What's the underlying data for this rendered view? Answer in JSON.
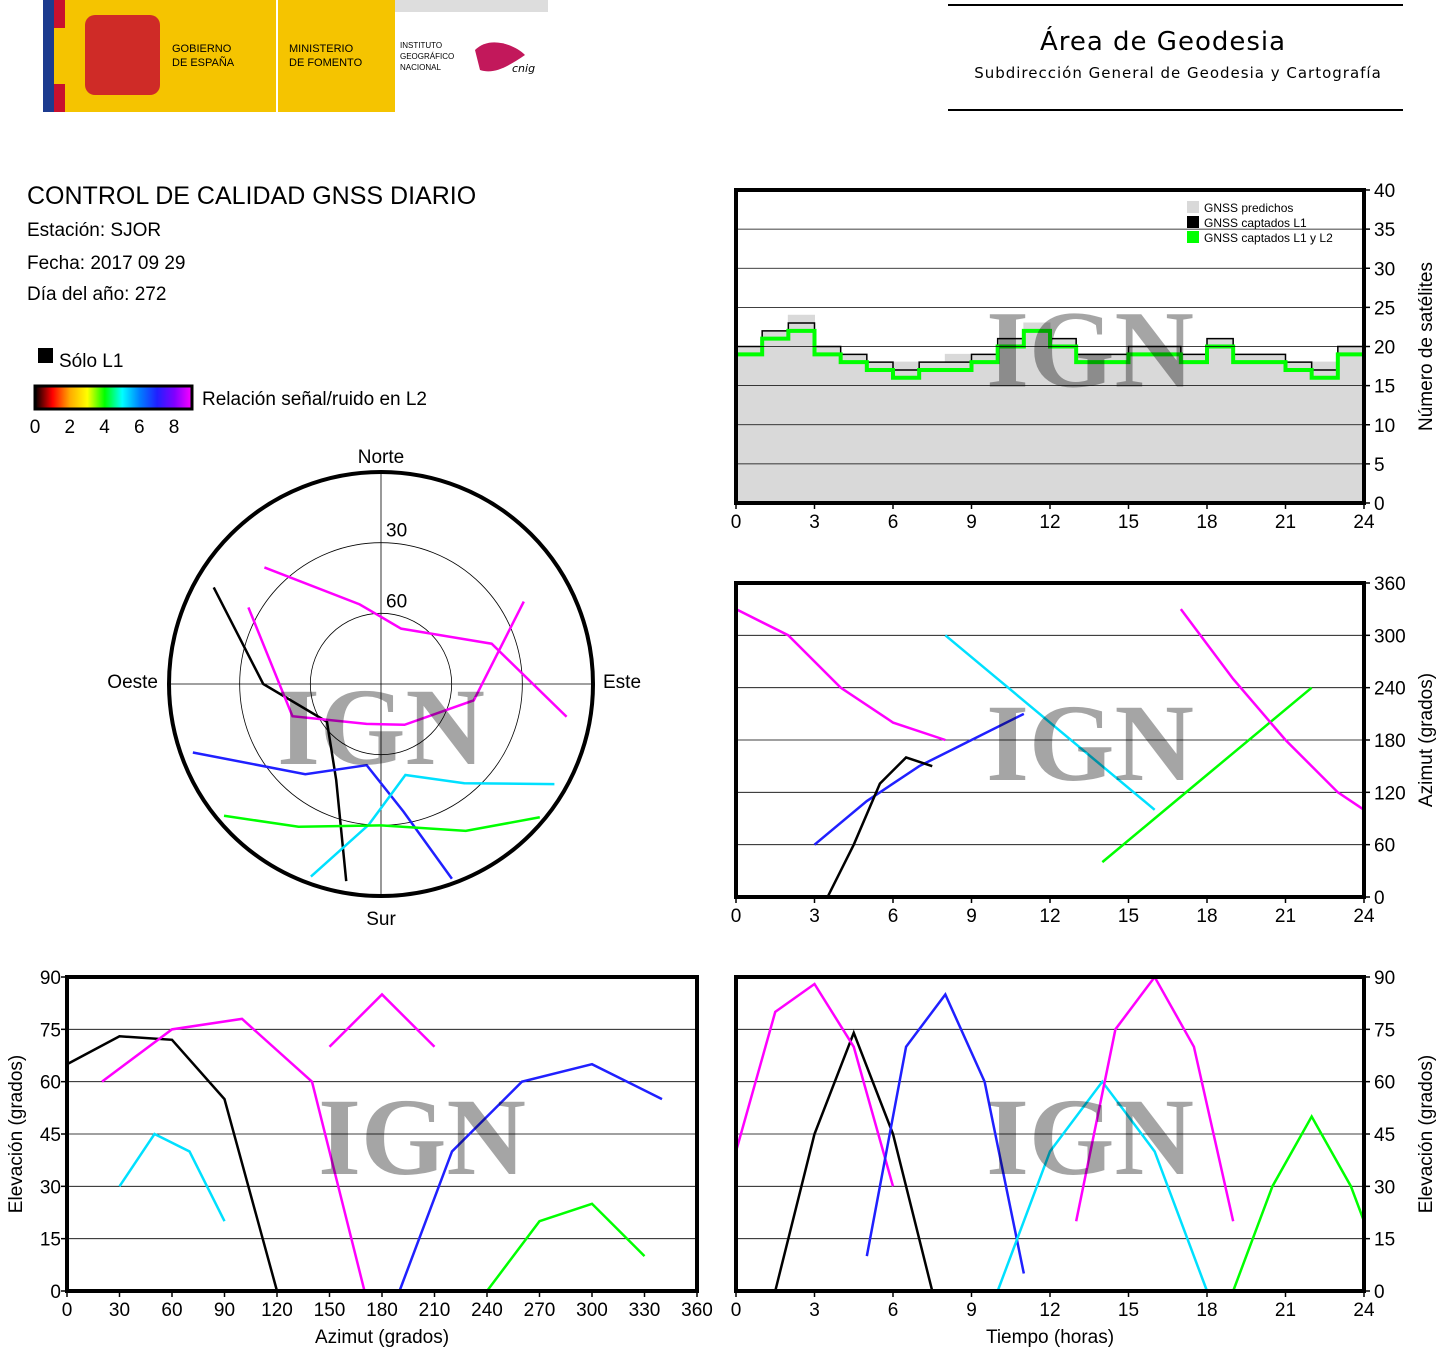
{
  "header": {
    "government": [
      "GOBIERNO",
      "DE ESPAÑA"
    ],
    "ministry": [
      "MINISTERIO",
      "DE FOMENTO"
    ],
    "institute": [
      "INSTITUTO",
      "GEOGRÁFICO",
      "NACIONAL"
    ],
    "cnig": "cnig",
    "area": "Área de Geodesia",
    "subdirection": "Subdirección General de Geodesia y Cartografía"
  },
  "report": {
    "title": "CONTROL DE CALIDAD GNSS DIARIO",
    "station": "Estación: SJOR",
    "date": "Fecha: 2017 09 29",
    "day_of_year": "Día del año: 272"
  },
  "legend": {
    "l1_only": "Sólo L1",
    "snr_label": "Relación señal/ruido en L2",
    "snr_ticks": [
      0,
      2,
      4,
      6,
      8
    ],
    "snr_colors": [
      "#000000",
      "#ff0000",
      "#ffaa00",
      "#ffff00",
      "#00ff00",
      "#00ffff",
      "#0080ff",
      "#2020ff",
      "#8000ff",
      "#ff00ff"
    ]
  },
  "watermark": "IGN",
  "chart_data": [
    {
      "type": "skyplot",
      "directions": {
        "north": "Norte",
        "south": "Sur",
        "east": "Este",
        "west": "Oeste"
      },
      "rticks": [
        30,
        60
      ],
      "series": [
        {
          "color": "#000000",
          "azimuth": [
            300,
            270,
            235,
            205,
            190
          ],
          "elevation": [
            8,
            40,
            62,
            45,
            5
          ]
        },
        {
          "color": "#ff00ff",
          "azimuth": [
            315,
            345,
            20,
            70,
            100
          ],
          "elevation": [
            20,
            55,
            65,
            40,
            10
          ]
        },
        {
          "color": "#2020ff",
          "azimuth": [
            250,
            220,
            190,
            170,
            160
          ],
          "elevation": [
            5,
            40,
            55,
            35,
            2
          ]
        },
        {
          "color": "#00e0ff",
          "azimuth": [
            120,
            140,
            165,
            185,
            200
          ],
          "elevation": [
            5,
            35,
            50,
            30,
            3
          ]
        },
        {
          "color": "#00ff00",
          "azimuth": [
            230,
            210,
            180,
            150,
            130
          ],
          "elevation": [
            3,
            20,
            30,
            18,
            2
          ]
        },
        {
          "color": "#ff00ff",
          "azimuth": [
            60,
            100,
            150,
            200,
            250,
            300
          ],
          "elevation": [
            20,
            50,
            70,
            72,
            50,
            25
          ]
        }
      ]
    },
    {
      "type": "step",
      "ylabel": "Número de satélites",
      "yaxis": "right",
      "legend_position": "top-right",
      "xlim": [
        0,
        24
      ],
      "xticks": [
        0,
        3,
        6,
        9,
        12,
        15,
        18,
        21,
        24
      ],
      "ylim": [
        0,
        40
      ],
      "yticks": [
        0,
        5,
        10,
        15,
        20,
        25,
        30,
        35,
        40
      ],
      "grid": true,
      "x": [
        0,
        1,
        2,
        3,
        4,
        5,
        6,
        7,
        8,
        9,
        10,
        11,
        12,
        13,
        14,
        15,
        16,
        17,
        18,
        19,
        20,
        21,
        22,
        23,
        24
      ],
      "series": [
        {
          "name": "GNSS predichos",
          "color": "#d9d9d9",
          "fill": true,
          "values": [
            20,
            22,
            24,
            20,
            19,
            18,
            18,
            18,
            19,
            19,
            21,
            23,
            21,
            19,
            19,
            20,
            20,
            19,
            21,
            19,
            19,
            18,
            18,
            20,
            21
          ]
        },
        {
          "name": "GNSS captados L1",
          "color": "#000000",
          "values": [
            20,
            22,
            23,
            20,
            19,
            18,
            17,
            18,
            18,
            19,
            21,
            22,
            21,
            19,
            19,
            20,
            20,
            19,
            21,
            19,
            19,
            18,
            17,
            20,
            21
          ]
        },
        {
          "name": "GNSS captados L1 y L2",
          "color": "#00ff00",
          "values": [
            19,
            21,
            22,
            19,
            18,
            17,
            16,
            17,
            17,
            18,
            20,
            22,
            20,
            18,
            18,
            19,
            19,
            18,
            20,
            18,
            18,
            17,
            16,
            19,
            20
          ]
        }
      ]
    },
    {
      "type": "line",
      "ylabel": "Azimut (grados)",
      "yaxis": "right",
      "xlim": [
        0,
        24
      ],
      "xticks": [
        0,
        3,
        6,
        9,
        12,
        15,
        18,
        21,
        24
      ],
      "ylim": [
        0,
        360
      ],
      "yticks": [
        0,
        60,
        120,
        180,
        240,
        300,
        360
      ],
      "grid": true,
      "series": [
        {
          "color": "#ff00ff",
          "x": [
            0,
            2,
            4,
            6,
            8
          ],
          "values": [
            330,
            300,
            240,
            200,
            180
          ]
        },
        {
          "color": "#2020ff",
          "x": [
            3,
            5,
            7,
            9,
            11
          ],
          "values": [
            60,
            110,
            150,
            180,
            210
          ]
        },
        {
          "color": "#00e0ff",
          "x": [
            8,
            10,
            12,
            14,
            16
          ],
          "values": [
            300,
            250,
            200,
            150,
            100
          ]
        },
        {
          "color": "#00ff00",
          "x": [
            14,
            16,
            18,
            20,
            22
          ],
          "values": [
            40,
            90,
            140,
            190,
            240
          ]
        },
        {
          "color": "#000000",
          "x": [
            3.5,
            4.5,
            5.5,
            6.5,
            7.5
          ],
          "values": [
            0,
            60,
            130,
            160,
            150
          ]
        },
        {
          "color": "#ff00ff",
          "x": [
            17,
            19,
            21,
            23,
            24
          ],
          "values": [
            330,
            250,
            180,
            120,
            100
          ]
        }
      ]
    },
    {
      "type": "line",
      "xlabel": "Azimut (grados)",
      "ylabel": "Elevación (grados)",
      "yaxis": "left",
      "xlim": [
        0,
        360
      ],
      "xticks": [
        0,
        30,
        60,
        90,
        120,
        150,
        180,
        210,
        240,
        270,
        300,
        330,
        360
      ],
      "ylim": [
        0,
        90
      ],
      "yticks": [
        0,
        15,
        30,
        45,
        60,
        75,
        90
      ],
      "grid": true,
      "series": [
        {
          "color": "#000000",
          "x": [
            0,
            30,
            60,
            90,
            120
          ],
          "values": [
            65,
            73,
            72,
            55,
            0
          ]
        },
        {
          "color": "#ff00ff",
          "x": [
            20,
            60,
            100,
            140,
            170
          ],
          "values": [
            60,
            75,
            78,
            60,
            0
          ]
        },
        {
          "color": "#2020ff",
          "x": [
            190,
            220,
            260,
            300,
            340
          ],
          "values": [
            0,
            40,
            60,
            65,
            55
          ]
        },
        {
          "color": "#00e0ff",
          "x": [
            30,
            50,
            70,
            90
          ],
          "values": [
            30,
            45,
            40,
            20
          ]
        },
        {
          "color": "#00ff00",
          "x": [
            240,
            270,
            300,
            330
          ],
          "values": [
            0,
            20,
            25,
            10
          ]
        },
        {
          "color": "#ff00ff",
          "x": [
            150,
            180,
            210
          ],
          "values": [
            70,
            85,
            70
          ]
        }
      ]
    },
    {
      "type": "line",
      "xlabel": "Tiempo (horas)",
      "ylabel": "Elevación (grados)",
      "yaxis": "right",
      "xlim": [
        0,
        24
      ],
      "xticks": [
        0,
        3,
        6,
        9,
        12,
        15,
        18,
        21,
        24
      ],
      "ylim": [
        0,
        90
      ],
      "yticks": [
        0,
        15,
        30,
        45,
        60,
        75,
        90
      ],
      "grid": true,
      "series": [
        {
          "color": "#000000",
          "x": [
            1.5,
            3,
            4.5,
            6,
            7.5
          ],
          "values": [
            0,
            45,
            74,
            45,
            0
          ]
        },
        {
          "color": "#ff00ff",
          "x": [
            0,
            1.5,
            3,
            4.5,
            6
          ],
          "values": [
            40,
            80,
            88,
            70,
            30
          ]
        },
        {
          "color": "#2020ff",
          "x": [
            5,
            6.5,
            8,
            9.5,
            11
          ],
          "values": [
            10,
            70,
            85,
            60,
            5
          ]
        },
        {
          "color": "#00e0ff",
          "x": [
            10,
            12,
            14,
            16,
            18
          ],
          "values": [
            0,
            40,
            60,
            40,
            0
          ]
        },
        {
          "color": "#ff00ff",
          "x": [
            13,
            14.5,
            16,
            17.5,
            19
          ],
          "values": [
            20,
            75,
            90,
            70,
            20
          ]
        },
        {
          "color": "#00ff00",
          "x": [
            19,
            20.5,
            22,
            23.5,
            24
          ],
          "values": [
            0,
            30,
            50,
            30,
            20
          ]
        }
      ]
    }
  ]
}
